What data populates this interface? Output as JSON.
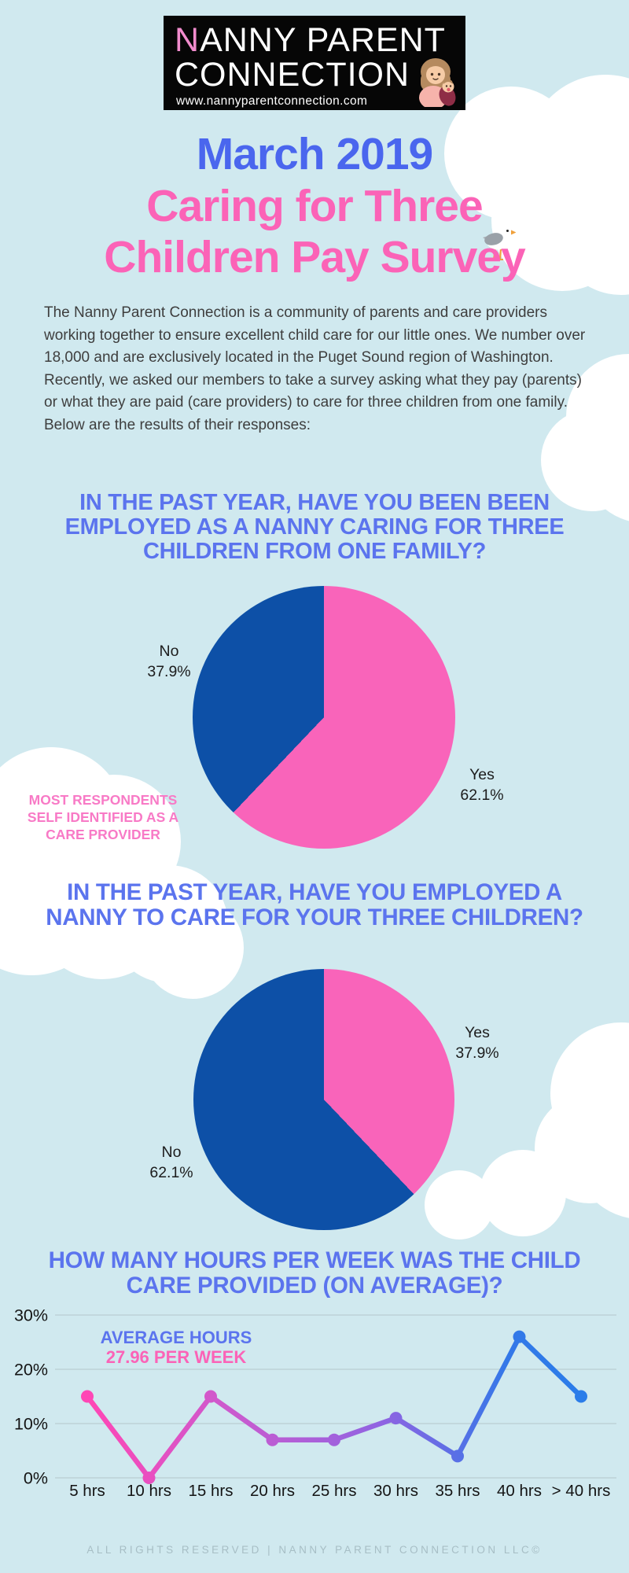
{
  "colors": {
    "background": "#d0e9ef",
    "cloud": "#ffffff",
    "logo_bg": "#060606",
    "logo_text": "#ffffff",
    "logo_accent_pink": "#f18ccd",
    "title_blue": "#4a66ee",
    "title_pink": "#fb63b7",
    "heading_blue": "#5b74ee",
    "annotation_pink": "#f87ac6",
    "pie_pink": "#f964ba",
    "pie_blue": "#0d50a7",
    "body_text": "#3e3e3e",
    "footer_text": "#a7bec5"
  },
  "logo": {
    "name_line1_accent": "N",
    "name_line1_rest": "ANNY PARENT",
    "name_line2": "CONNECTION",
    "website": "www.nannyparentconnection.com",
    "avatar_icon": "nanny-with-baby-icon"
  },
  "title": {
    "line1": "March 2019",
    "line2": "Caring for Three",
    "line3": "Children Pay Survey"
  },
  "decor": {
    "bird_icon": "seagull-icon"
  },
  "intro_paragraph": "The Nanny Parent Connection is a community of parents and care providers working together to ensure excellent child care for our little ones. We number over 18,000 and are exclusively located in the Puget Sound region of Washington. Recently, we asked our members to take a survey asking what they pay (parents) or what they are paid (care providers) to care for three children from one family. Below are the results of their responses:",
  "questions": [
    {
      "heading_lines": [
        "IN THE PAST YEAR, HAVE YOU BEEN BEEN",
        "EMPLOYED AS A NANNY CARING FOR THREE",
        "CHILDREN FROM ONE FAMILY?"
      ]
    },
    {
      "heading_lines": [
        "IN THE PAST YEAR, HAVE YOU EMPLOYED A",
        "NANNY TO CARE FOR YOUR THREE CHILDREN?"
      ]
    },
    {
      "heading_lines": [
        "HOW MANY HOURS PER WEEK WAS THE CHILD",
        "CARE PROVIDED (ON AVERAGE)?"
      ]
    }
  ],
  "pie1_annotation_lines": [
    "MOST RESPONDENTS",
    "SELF IDENTIFIED AS A",
    "CARE PROVIDER"
  ],
  "line_annotation_lines": [
    "AVERAGE HOURS",
    "27.96 PER WEEK"
  ],
  "footer": "ALL RIGHTS RESERVED | NANNY PARENT CONNECTION LLC©",
  "chart_data": [
    {
      "type": "pie",
      "title": "IN THE PAST YEAR, HAVE YOU BEEN BEEN EMPLOYED AS A NANNY CARING FOR THREE CHILDREN FROM ONE FAMILY?",
      "start_angle": "12-oclock",
      "direction": "clockwise",
      "slices": [
        {
          "label": "Yes",
          "value": 62.1,
          "display": "62.1%",
          "color": "#f964ba"
        },
        {
          "label": "No",
          "value": 37.9,
          "display": "37.9%",
          "color": "#0d50a7"
        }
      ],
      "note": "MOST RESPONDENTS SELF IDENTIFIED AS A CARE PROVIDER"
    },
    {
      "type": "pie",
      "title": "IN THE PAST YEAR, HAVE YOU EMPLOYED A NANNY TO CARE FOR YOUR THREE CHILDREN?",
      "start_angle": "12-oclock",
      "direction": "clockwise",
      "slices": [
        {
          "label": "Yes",
          "value": 37.9,
          "display": "37.9%",
          "color": "#f964ba"
        },
        {
          "label": "No",
          "value": 62.1,
          "display": "62.1%",
          "color": "#0d50a7"
        }
      ]
    },
    {
      "type": "line",
      "title": "HOW MANY HOURS PER WEEK WAS THE CHILD CARE PROVIDED (ON AVERAGE)?",
      "categories": [
        "5 hrs",
        "10 hrs",
        "15 hrs",
        "20 hrs",
        "25 hrs",
        "30 hrs",
        "35 hrs",
        "40 hrs",
        "> 40 hrs"
      ],
      "values": [
        15,
        0,
        15,
        7,
        7,
        11,
        4,
        26,
        15
      ],
      "ylim": [
        0,
        30
      ],
      "yticks": [
        0,
        10,
        20,
        30
      ],
      "ytick_labels": [
        "0%",
        "10%",
        "20%",
        "30%"
      ],
      "grid": true,
      "grid_color": "#bdd2d7",
      "axis_color": "#141414",
      "annotation": "AVERAGE HOURS 27.96 PER WEEK",
      "average_hours_per_week": 27.96,
      "line_gradient": [
        {
          "offset": "0%",
          "color": "#ff47b5"
        },
        {
          "offset": "30%",
          "color": "#c95bcf"
        },
        {
          "offset": "60%",
          "color": "#8f64e2"
        },
        {
          "offset": "85%",
          "color": "#3478e8"
        },
        {
          "offset": "100%",
          "color": "#2b7de9"
        }
      ]
    }
  ]
}
